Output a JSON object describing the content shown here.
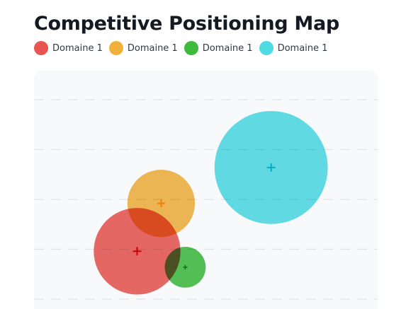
{
  "title": "Competitive Positioning Map",
  "legend": [
    {
      "label": "Domaine 1",
      "color": "#e85450"
    },
    {
      "label": "Domaine 1",
      "color": "#f0b03c"
    },
    {
      "label": "Domaine 1",
      "color": "#3ebb3c"
    },
    {
      "label": "Domaine 1",
      "color": "#4edbe4"
    }
  ],
  "chart_data": {
    "type": "scatter",
    "title": "Competitive Positioning Map",
    "xlabel": "",
    "ylabel": "",
    "xlim": [
      0,
      100
    ],
    "ylim": [
      0,
      100
    ],
    "grid": "horizontal-dashed",
    "legend_position": "top-left",
    "series": [
      {
        "name": "Domaine 1",
        "x": 30,
        "y": 24,
        "size": 36,
        "color": "#e85450",
        "marker_color": "#cc0000"
      },
      {
        "name": "Domaine 1",
        "x": 37,
        "y": 48,
        "size": 28,
        "color": "#f0b03c",
        "marker_color": "#f57c00"
      },
      {
        "name": "Domaine 1",
        "x": 44,
        "y": 16,
        "size": 17,
        "color": "#3ebb3c",
        "marker_color": "#1b5e20"
      },
      {
        "name": "Domaine 1",
        "x": 69,
        "y": 66,
        "size": 47,
        "color": "#4edbe4",
        "marker_color": "#00acc1"
      }
    ]
  }
}
